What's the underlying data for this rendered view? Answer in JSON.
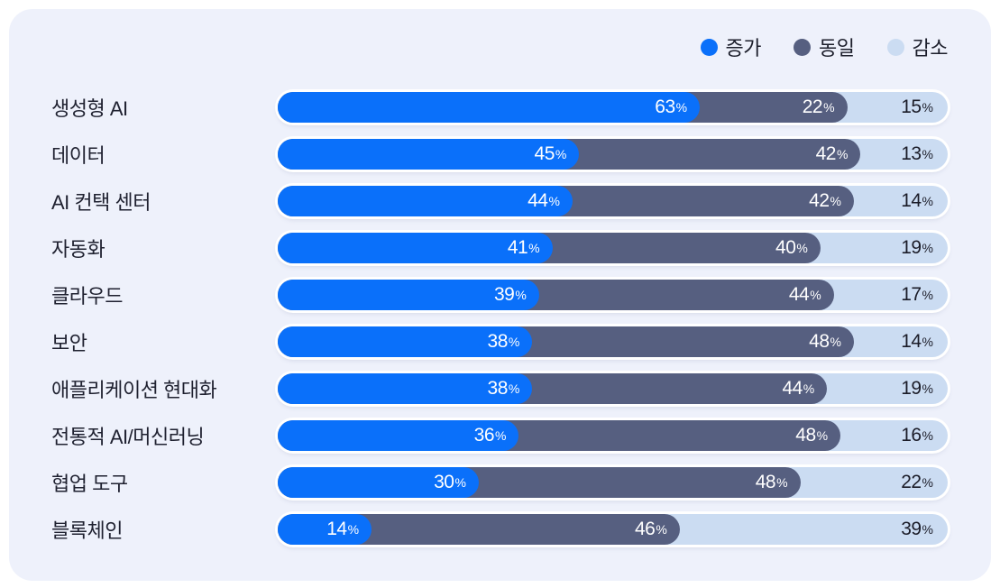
{
  "colors": {
    "card_background": "#eef1fb",
    "page_background": "#ffffff",
    "increase": "#0a70fa",
    "same": "#565f80",
    "decrease": "#cbdcf2",
    "text_dark": "#1f2130",
    "text_on_segment": "#ffffff"
  },
  "legend": {
    "position": "top-right",
    "items": [
      {
        "label": "증가",
        "color": "#0a70fa"
      },
      {
        "label": "동일",
        "color": "#565f80"
      },
      {
        "label": "감소",
        "color": "#cbdcf2"
      }
    ]
  },
  "chart_data": {
    "type": "bar",
    "orientation": "horizontal",
    "stacked": true,
    "unit": "%",
    "xlim": [
      0,
      100
    ],
    "grid": false,
    "legend_position": "top-right",
    "value_labels": "inside-end",
    "categories": [
      "생성형 AI",
      "데이터",
      "AI 컨택 센터",
      "자동화",
      "클라우드",
      "보안",
      "애플리케이션 현대화",
      "전통적 AI/머신러닝",
      "협업 도구",
      "블록체인"
    ],
    "series": [
      {
        "name": "증가",
        "color": "#0a70fa",
        "values": [
          63,
          45,
          44,
          41,
          39,
          38,
          38,
          36,
          30,
          14
        ]
      },
      {
        "name": "동일",
        "color": "#565f80",
        "values": [
          22,
          42,
          42,
          40,
          44,
          48,
          44,
          48,
          48,
          46
        ]
      },
      {
        "name": "감소",
        "color": "#cbdcf2",
        "values": [
          15,
          13,
          14,
          19,
          17,
          14,
          19,
          16,
          22,
          39
        ]
      }
    ]
  }
}
